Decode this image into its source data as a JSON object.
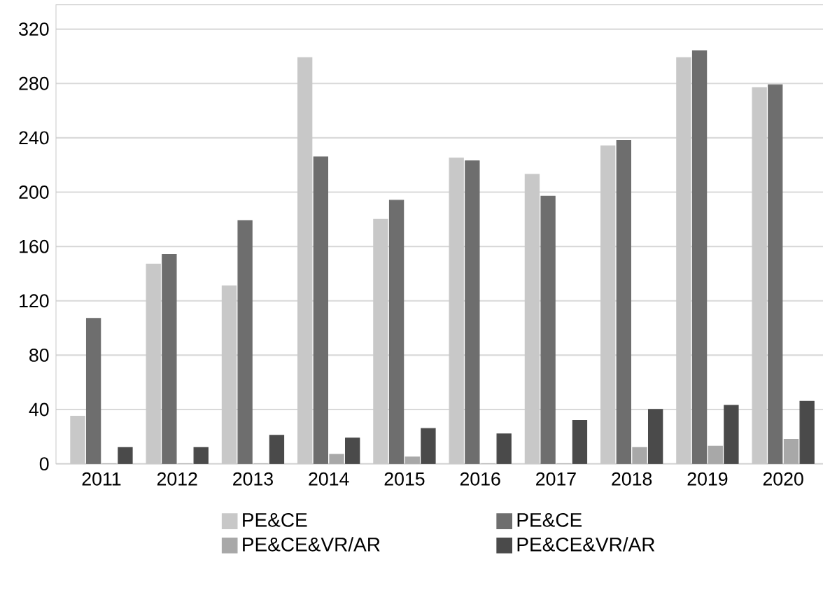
{
  "chart_data": {
    "type": "bar",
    "categories": [
      "2011",
      "2012",
      "2013",
      "2014",
      "2015",
      "2016",
      "2017",
      "2018",
      "2019",
      "2020"
    ],
    "series": [
      {
        "name": "PE&CE",
        "color": "#c8c8c8",
        "values": [
          35,
          147,
          131,
          299,
          180,
          225,
          213,
          234,
          299,
          277
        ]
      },
      {
        "name": "PE&CE",
        "color": "#6e6e6e",
        "values": [
          107,
          154,
          179,
          226,
          194,
          223,
          197,
          238,
          304,
          279
        ]
      },
      {
        "name": "PE&CE&VR/AR",
        "color": "#a8a8a8",
        "values": [
          0,
          0,
          0,
          7,
          5,
          0,
          0,
          12,
          13,
          18
        ]
      },
      {
        "name": "PE&CE&VR/AR",
        "color": "#4a4a4a",
        "values": [
          12,
          12,
          21,
          19,
          26,
          22,
          32,
          40,
          43,
          46
        ]
      }
    ],
    "ylim": [
      0,
      338
    ],
    "yticks": [
      0,
      40,
      80,
      120,
      160,
      200,
      240,
      280,
      320
    ],
    "grid": "y",
    "legend": "bottom"
  }
}
